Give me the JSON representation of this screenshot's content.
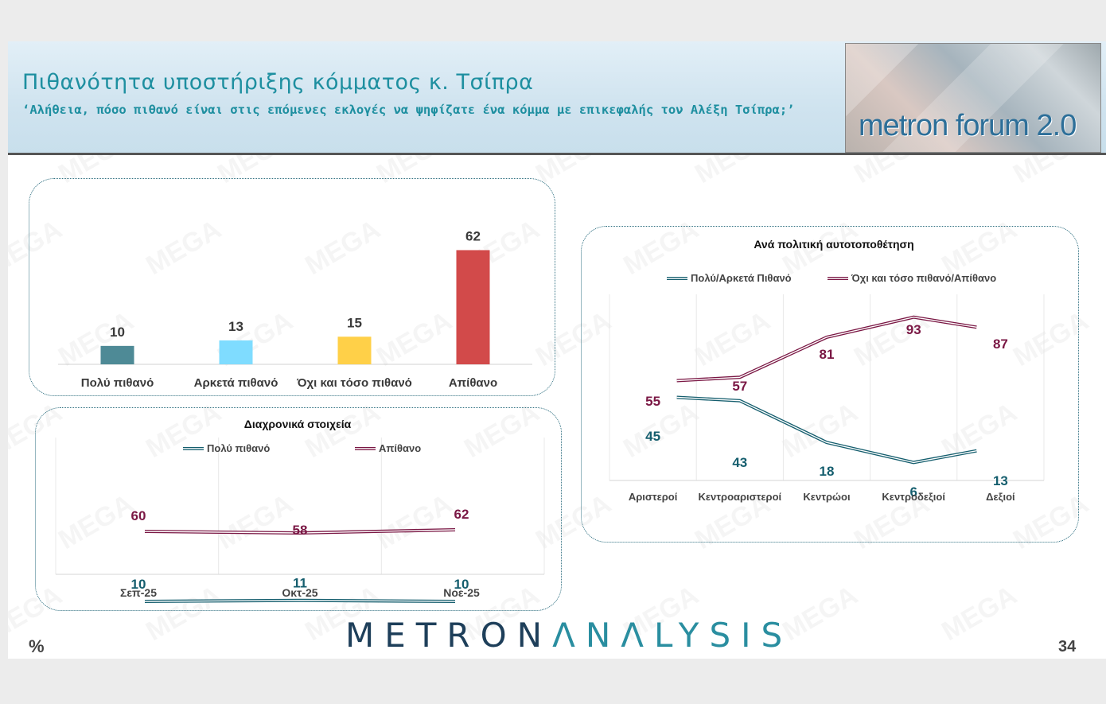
{
  "header": {
    "title": "Πιθανότητα υποστήριξης κόμματος κ. Τσίπρα",
    "subtitle": "‘Αλήθεια, πόσο πιθανό είναι στις επόμενες εκλογές να ψηφίζατε ένα κόμμα με επικεφαλής τον Αλέξη Τσίπρα;’",
    "logo_text": "metron forum 2.0"
  },
  "footer": {
    "brand_part1": "METRON",
    "brand_part2": "ΛNΛLYSIS",
    "unit": "%",
    "page_number": "34"
  },
  "watermark_text": "MEGA",
  "colors": {
    "title": "#1e8fa0",
    "poly_pithano": "#4e8a96",
    "arketa_pithano": "#7fdcff",
    "ochi_toso": "#ffd048",
    "apithano": "#d24a4a",
    "line_likely": "#155e6e",
    "line_unlikely": "#7a1744"
  },
  "chart_data": [
    {
      "type": "bar",
      "title": "",
      "categories": [
        "Πολύ πιθανό",
        "Αρκετά πιθανό",
        "Όχι και τόσο πιθανό",
        "Απίθανο"
      ],
      "values": [
        10,
        13,
        15,
        62
      ],
      "ylim": [
        0,
        70
      ]
    },
    {
      "type": "line",
      "title": "Διαχρονικά στοιχεία",
      "categories": [
        "Σεπ-25",
        "Οκτ-25",
        "Νοε-25"
      ],
      "series": [
        {
          "name": "Πολύ πιθανό",
          "values": [
            10,
            11,
            10
          ]
        },
        {
          "name": "Απίθανο",
          "values": [
            60,
            58,
            62
          ]
        }
      ],
      "legend": "top",
      "grid": "vertical"
    },
    {
      "type": "line",
      "title": "Ανά πολιτική αυτοτοποθέτηση",
      "categories": [
        "Αριστεροί",
        "Κεντροαριστεροί",
        "Κεντρώοι",
        "Κεντροδεξιοί",
        "Δεξιοί"
      ],
      "series": [
        {
          "name": "Πολύ/Αρκετά Πιθανό",
          "values": [
            45,
            43,
            18,
            6,
            13
          ]
        },
        {
          "name": "Όχι και τόσο πιθανό/Απίθανο",
          "values": [
            55,
            57,
            81,
            93,
            87
          ]
        }
      ],
      "ylim": [
        0,
        100
      ],
      "legend": "top",
      "grid": "vertical"
    }
  ]
}
